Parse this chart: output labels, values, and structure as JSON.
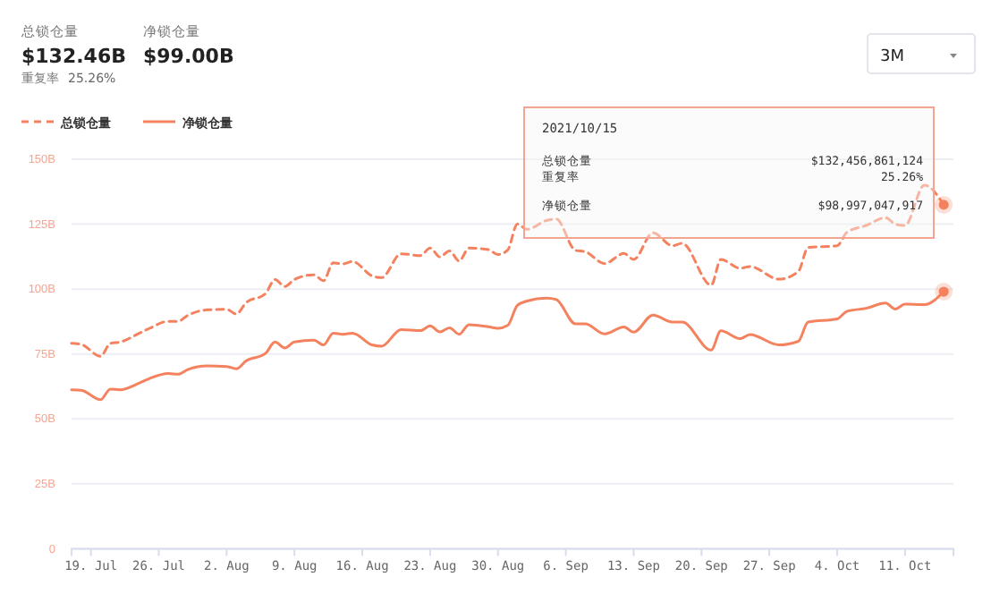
{
  "chart_data": {
    "type": "line",
    "x": [
      "2021-07-17",
      "2021-07-18",
      "2021-07-20",
      "2021-07-21",
      "2021-07-22",
      "2021-07-24",
      "2021-07-25",
      "2021-07-27",
      "2021-07-28",
      "2021-07-29",
      "2021-07-31",
      "2021-08-02",
      "2021-08-03",
      "2021-08-04",
      "2021-08-06",
      "2021-08-07",
      "2021-08-08",
      "2021-08-09",
      "2021-08-11",
      "2021-08-12",
      "2021-08-13",
      "2021-08-14",
      "2021-08-15",
      "2021-08-17",
      "2021-08-18",
      "2021-08-20",
      "2021-08-22",
      "2021-08-23",
      "2021-08-24",
      "2021-08-25",
      "2021-08-26",
      "2021-08-27",
      "2021-08-29",
      "2021-08-30",
      "2021-08-31",
      "2021-09-01",
      "2021-09-02",
      "2021-09-04",
      "2021-09-05",
      "2021-09-07",
      "2021-09-08",
      "2021-09-10",
      "2021-09-12",
      "2021-09-13",
      "2021-09-15",
      "2021-09-17",
      "2021-09-18",
      "2021-09-21",
      "2021-09-22",
      "2021-09-24",
      "2021-09-25",
      "2021-09-28",
      "2021-09-30",
      "2021-10-01",
      "2021-10-04",
      "2021-10-05",
      "2021-10-07",
      "2021-10-09",
      "2021-10-10",
      "2021-10-11",
      "2021-10-13",
      "2021-10-15"
    ],
    "series": [
      {
        "name": "总锁仓量",
        "color": "#f4825f",
        "line_style": "dashed",
        "values": [
          79.1,
          78.7,
          74.1,
          79.1,
          79.6,
          83,
          84.8,
          87.6,
          87.6,
          89.9,
          92,
          92.2,
          90.4,
          94.7,
          98.2,
          103.7,
          101,
          103.7,
          105.5,
          103.2,
          110.1,
          109.7,
          110.6,
          105.1,
          104.4,
          113.6,
          112.9,
          115.8,
          112.4,
          114.7,
          110.8,
          115.8,
          115.2,
          113.3,
          115,
          125,
          123,
          126.4,
          127,
          114.9,
          114.4,
          109.8,
          113.7,
          111.4,
          121.7,
          116.7,
          117.6,
          101.5,
          111.4,
          108,
          108.7,
          103.8,
          106.8,
          116,
          116.7,
          121.8,
          124.5,
          127.5,
          125,
          124.5,
          140,
          132.46
        ]
      },
      {
        "name": "净锁仓量",
        "color": "#f4825f",
        "line_style": "solid",
        "values": [
          61.2,
          61,
          57.4,
          61.5,
          61.2,
          63.8,
          65.5,
          67.5,
          67.2,
          69,
          70.4,
          70.2,
          69.3,
          72.3,
          75.2,
          79.6,
          77.3,
          79.6,
          80.3,
          78.5,
          83,
          82.6,
          83,
          78.5,
          78,
          84.4,
          84,
          85.8,
          83.5,
          85.1,
          82.6,
          86.3,
          85.5,
          84.9,
          86,
          93.7,
          95.4,
          96.5,
          96,
          86.6,
          86.6,
          82.7,
          85.4,
          83.4,
          90,
          87.3,
          87.3,
          76.5,
          83.9,
          80.9,
          82.5,
          78.5,
          79.9,
          87.3,
          88.5,
          91.4,
          92.6,
          94.6,
          92.3,
          94.2,
          94,
          99.0
        ]
      }
    ],
    "xlim": [
      "2021-07-17",
      "2021-10-16"
    ],
    "xticks": [
      {
        "value": "2021-07-19",
        "label": "19. Jul"
      },
      {
        "value": "2021-07-26",
        "label": "26. Jul"
      },
      {
        "value": "2021-08-02",
        "label": "2. Aug"
      },
      {
        "value": "2021-08-09",
        "label": "9. Aug"
      },
      {
        "value": "2021-08-16",
        "label": "16. Aug"
      },
      {
        "value": "2021-08-23",
        "label": "23. Aug"
      },
      {
        "value": "2021-08-30",
        "label": "30. Aug"
      },
      {
        "value": "2021-09-06",
        "label": "6. Sep"
      },
      {
        "value": "2021-09-13",
        "label": "13. Sep"
      },
      {
        "value": "2021-09-20",
        "label": "20. Sep"
      },
      {
        "value": "2021-09-27",
        "label": "27. Sep"
      },
      {
        "value": "2021-10-04",
        "label": "4. Oct"
      },
      {
        "value": "2021-10-11",
        "label": "11. Oct"
      }
    ],
    "ylim": [
      0,
      150
    ],
    "yticks": [
      0,
      {
        "value": 25,
        "label": "25B"
      },
      {
        "value": 50,
        "label": "50B"
      },
      {
        "value": 75,
        "label": "75B"
      },
      {
        "value": 100,
        "label": "100B"
      },
      {
        "value": 125,
        "label": "125B"
      },
      {
        "value": 150,
        "label": "150B"
      }
    ],
    "grid": "y",
    "legend": "top left",
    "marker": "none",
    "annotations": [
      "总锁仓量",
      "$132.46B",
      "净锁仓量",
      "$99.00B",
      "重复率",
      "25.26%",
      "3M",
      "2021/10/15",
      "总锁仓量",
      "$132,456,861,124",
      "重复率",
      "25.26%",
      "净锁仓量",
      "$98,997,047,917"
    ]
  }
}
